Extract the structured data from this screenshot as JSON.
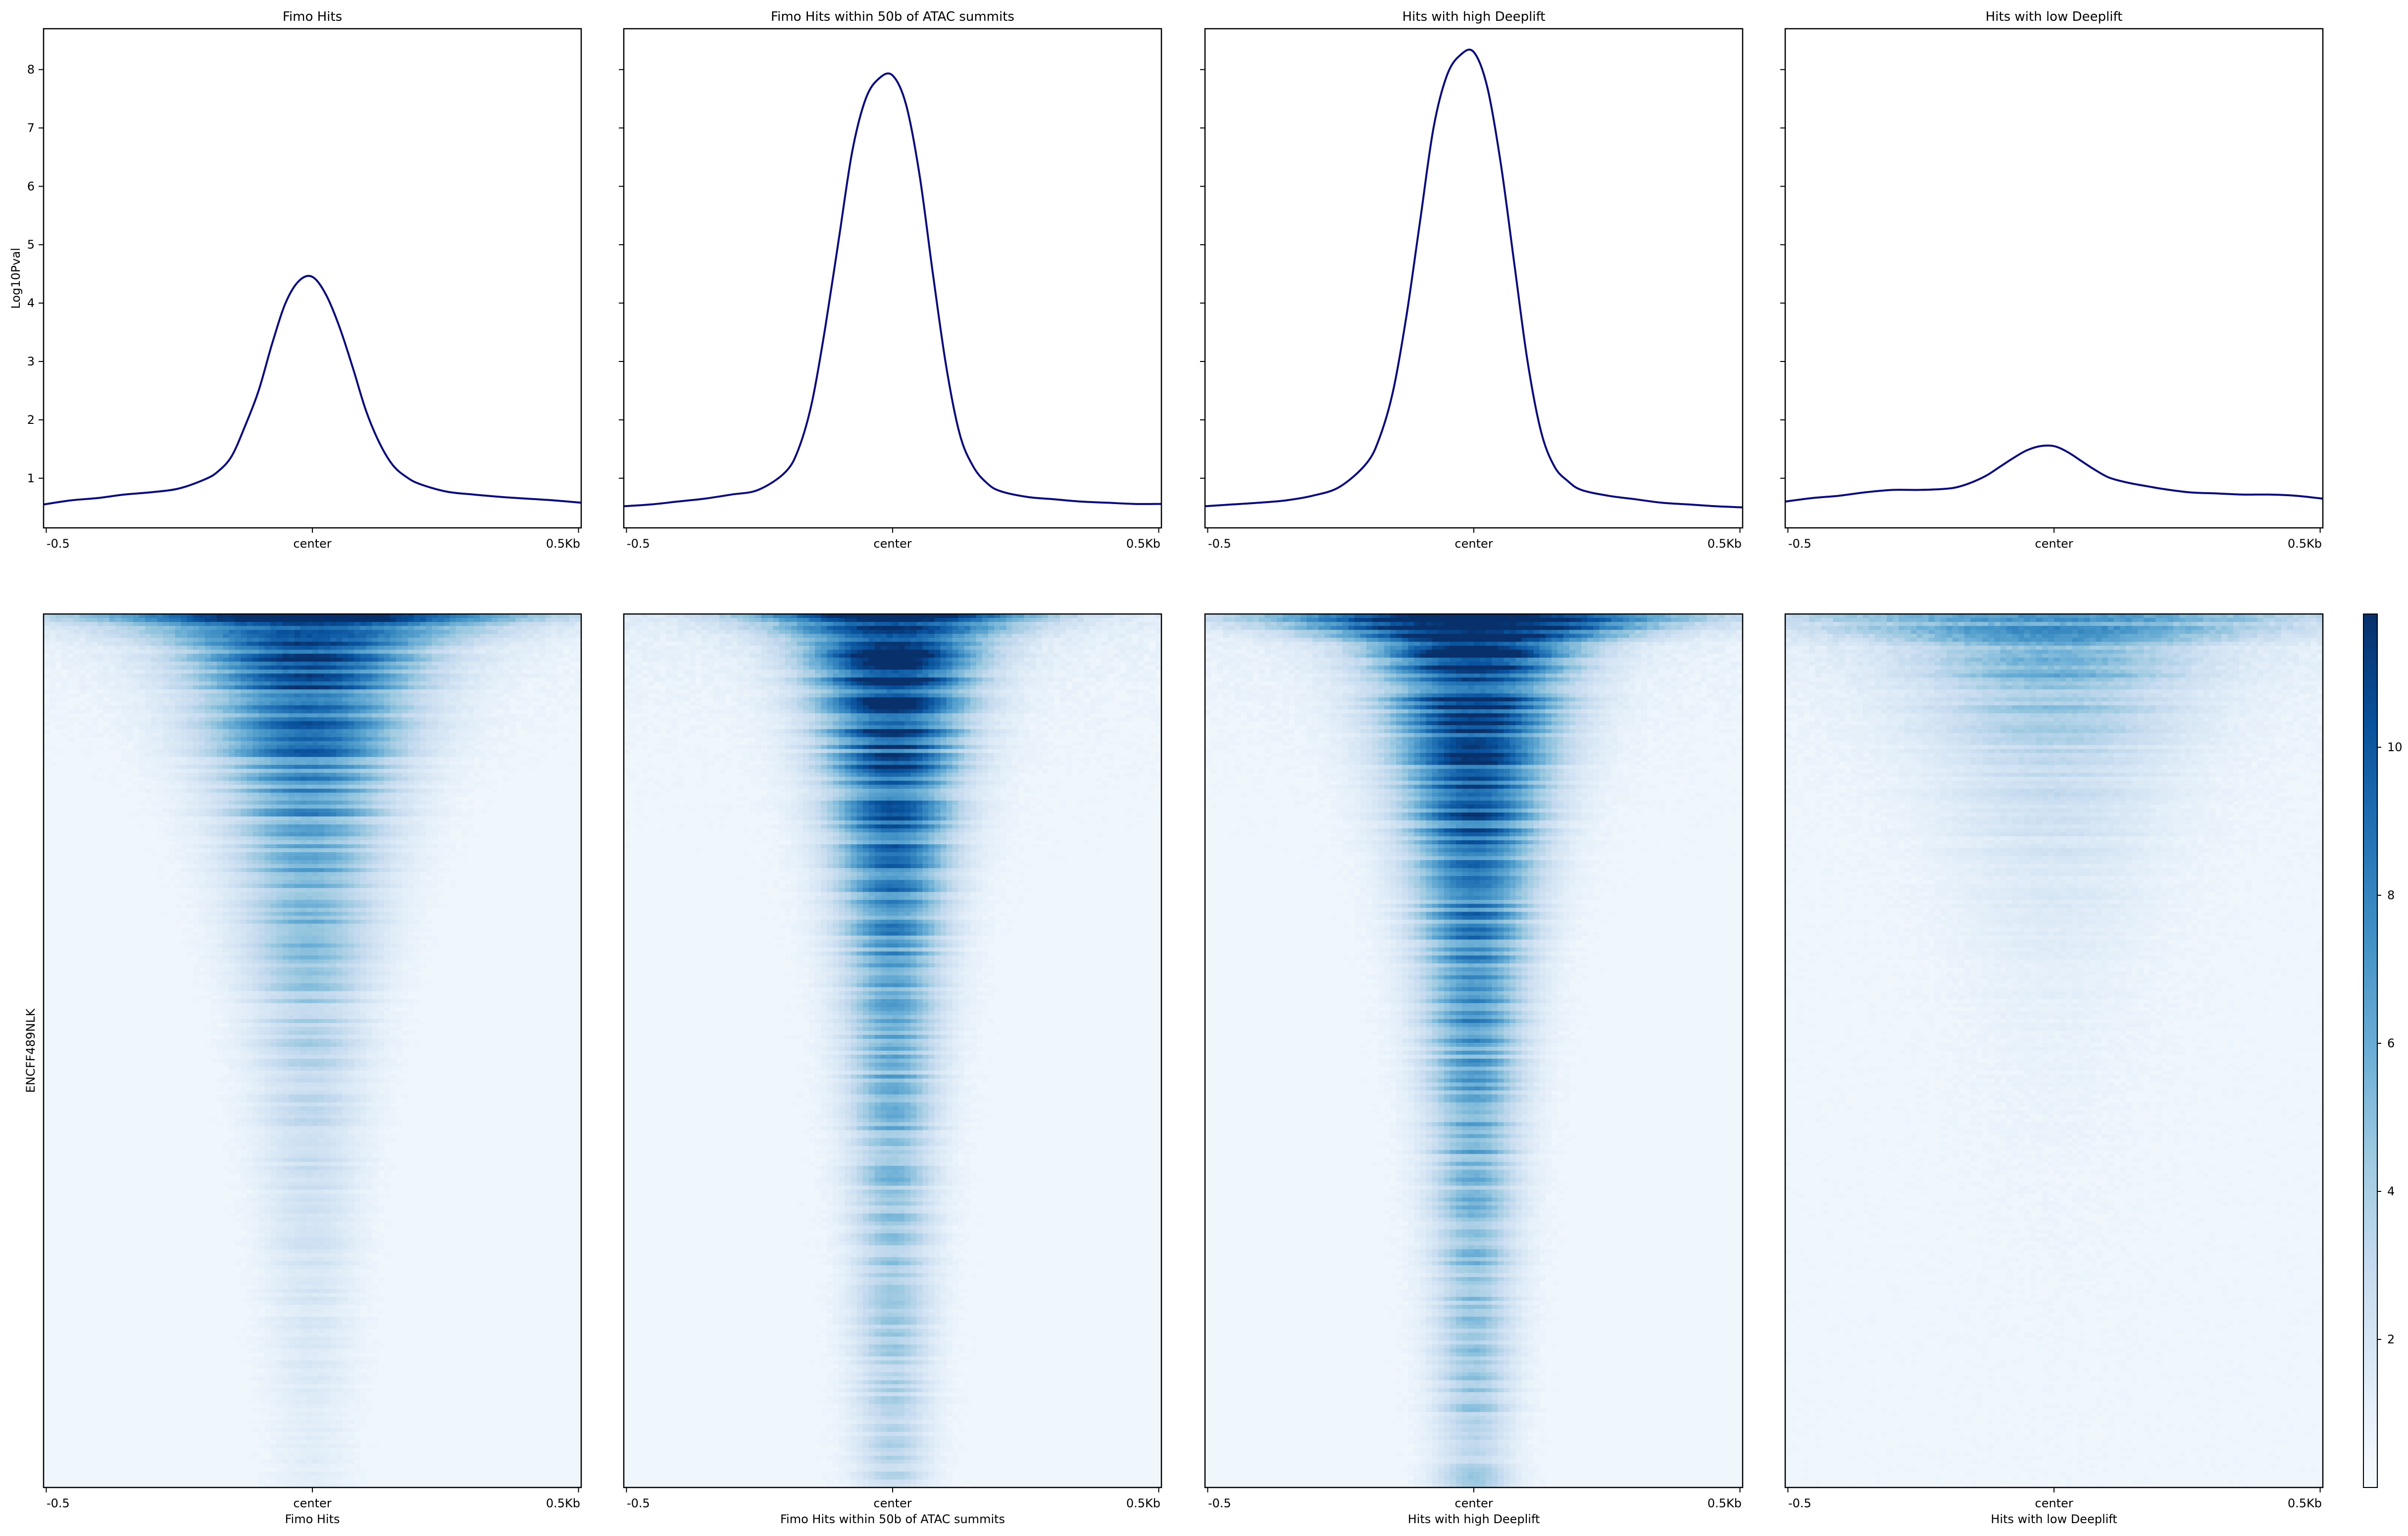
{
  "chart_data": [
    {
      "type": "line",
      "role": "profile",
      "title": "Fimo Hits",
      "ylabel": "Log10Pval",
      "xticks": [
        "-0.5",
        "center",
        "0.5Kb"
      ],
      "x": [
        -500,
        -450,
        -400,
        -350,
        -300,
        -250,
        -200,
        -175,
        -150,
        -125,
        -100,
        -75,
        -50,
        -25,
        0,
        25,
        50,
        75,
        100,
        125,
        150,
        175,
        200,
        250,
        300,
        350,
        400,
        450,
        500
      ],
      "y": [
        0.55,
        0.62,
        0.66,
        0.72,
        0.76,
        0.82,
        0.98,
        1.12,
        1.38,
        1.9,
        2.5,
        3.3,
        4.0,
        4.38,
        4.45,
        4.15,
        3.6,
        2.9,
        2.15,
        1.6,
        1.22,
        1.02,
        0.9,
        0.77,
        0.72,
        0.68,
        0.65,
        0.62,
        0.58
      ],
      "ylim": [
        0.15,
        8.7
      ],
      "yticks": [
        1,
        2,
        3,
        4,
        5,
        6,
        7,
        8
      ],
      "line_color": "#0a0a7a"
    },
    {
      "type": "line",
      "role": "profile",
      "title": "Fimo Hits within 50b of ATAC summits",
      "xticks": [
        "-0.5",
        "center",
        "0.5Kb"
      ],
      "x": [
        -500,
        -450,
        -400,
        -350,
        -300,
        -250,
        -200,
        -175,
        -150,
        -125,
        -100,
        -75,
        -50,
        -25,
        0,
        25,
        50,
        75,
        100,
        125,
        150,
        175,
        200,
        250,
        300,
        350,
        400,
        450,
        500
      ],
      "y": [
        0.52,
        0.55,
        0.6,
        0.65,
        0.72,
        0.8,
        1.1,
        1.5,
        2.3,
        3.6,
        5.1,
        6.6,
        7.5,
        7.85,
        7.9,
        7.4,
        6.2,
        4.5,
        2.9,
        1.75,
        1.2,
        0.92,
        0.78,
        0.68,
        0.64,
        0.6,
        0.58,
        0.56,
        0.56
      ],
      "ylim": [
        0.15,
        8.7
      ],
      "line_color": "#0a0a7a"
    },
    {
      "type": "line",
      "role": "profile",
      "title": "Hits with high Deeplift",
      "xticks": [
        "-0.5",
        "center",
        "0.5Kb"
      ],
      "x": [
        -500,
        -450,
        -400,
        -350,
        -300,
        -250,
        -200,
        -175,
        -150,
        -125,
        -100,
        -75,
        -50,
        -25,
        0,
        25,
        50,
        75,
        100,
        125,
        150,
        175,
        200,
        250,
        300,
        350,
        400,
        450,
        500
      ],
      "y": [
        0.52,
        0.55,
        0.58,
        0.62,
        0.7,
        0.85,
        1.25,
        1.7,
        2.5,
        3.8,
        5.4,
        7.0,
        7.9,
        8.25,
        8.3,
        7.7,
        6.4,
        4.7,
        3.0,
        1.8,
        1.2,
        0.95,
        0.8,
        0.7,
        0.64,
        0.58,
        0.55,
        0.52,
        0.5
      ],
      "ylim": [
        0.15,
        8.7
      ],
      "line_color": "#0a0a7a"
    },
    {
      "type": "line",
      "role": "profile",
      "title": "Hits with low Deeplift",
      "xticks": [
        "-0.5",
        "center",
        "0.5Kb"
      ],
      "x": [
        -500,
        -450,
        -400,
        -350,
        -300,
        -250,
        -200,
        -175,
        -150,
        -125,
        -100,
        -75,
        -50,
        -25,
        0,
        25,
        50,
        75,
        100,
        125,
        150,
        175,
        200,
        250,
        300,
        350,
        400,
        450,
        500
      ],
      "y": [
        0.6,
        0.66,
        0.7,
        0.76,
        0.8,
        0.8,
        0.82,
        0.86,
        0.94,
        1.05,
        1.2,
        1.35,
        1.48,
        1.55,
        1.55,
        1.45,
        1.3,
        1.15,
        1.02,
        0.95,
        0.9,
        0.86,
        0.82,
        0.76,
        0.74,
        0.72,
        0.72,
        0.7,
        0.65
      ],
      "ylim": [
        0.15,
        8.7
      ],
      "line_color": "#0a0a7a"
    },
    {
      "type": "heatmap",
      "role": "heatmap",
      "ylabel": "ENCFF489NLK",
      "xlabel": "Fimo Hits",
      "xticks": [
        "-0.5",
        "center",
        "0.5Kb"
      ],
      "peak_top": 11.5,
      "width_top_kb": 0.17,
      "width_bottom_kb": 0.05,
      "decay": 2.6,
      "background": 0.35,
      "top_shift": -0.01,
      "top_flare": 0.6
    },
    {
      "type": "heatmap",
      "role": "heatmap",
      "xlabel": "Fimo Hits within 50b of ATAC summits",
      "xticks": [
        "-0.5",
        "center",
        "0.5Kb"
      ],
      "peak_top": 12,
      "width_top_kb": 0.12,
      "width_bottom_kb": 0.045,
      "decay": 1.5,
      "background": 0.4,
      "top_shift": 0,
      "top_flare": 0.5
    },
    {
      "type": "heatmap",
      "role": "heatmap",
      "xlabel": "Hits with high Deeplift",
      "xticks": [
        "-0.5",
        "center",
        "0.5Kb"
      ],
      "peak_top": 12,
      "width_top_kb": 0.14,
      "width_bottom_kb": 0.045,
      "decay": 1.3,
      "background": 0.4,
      "top_shift": 0,
      "top_flare": 0.9
    },
    {
      "type": "heatmap",
      "role": "heatmap",
      "xlabel": "Hits with low Deeplift",
      "xticks": [
        "-0.5",
        "center",
        "0.5Kb"
      ],
      "peak_top": 6.5,
      "width_top_kb": 0.2,
      "width_bottom_kb": 0.1,
      "decay": 5.5,
      "background": 0.45,
      "top_shift": 0,
      "top_flare": 0.7
    }
  ],
  "colorbar": {
    "cmap": "Blues",
    "range": [
      0,
      11.8
    ],
    "ticks": [
      "2",
      "4",
      "6",
      "8",
      "10"
    ]
  }
}
